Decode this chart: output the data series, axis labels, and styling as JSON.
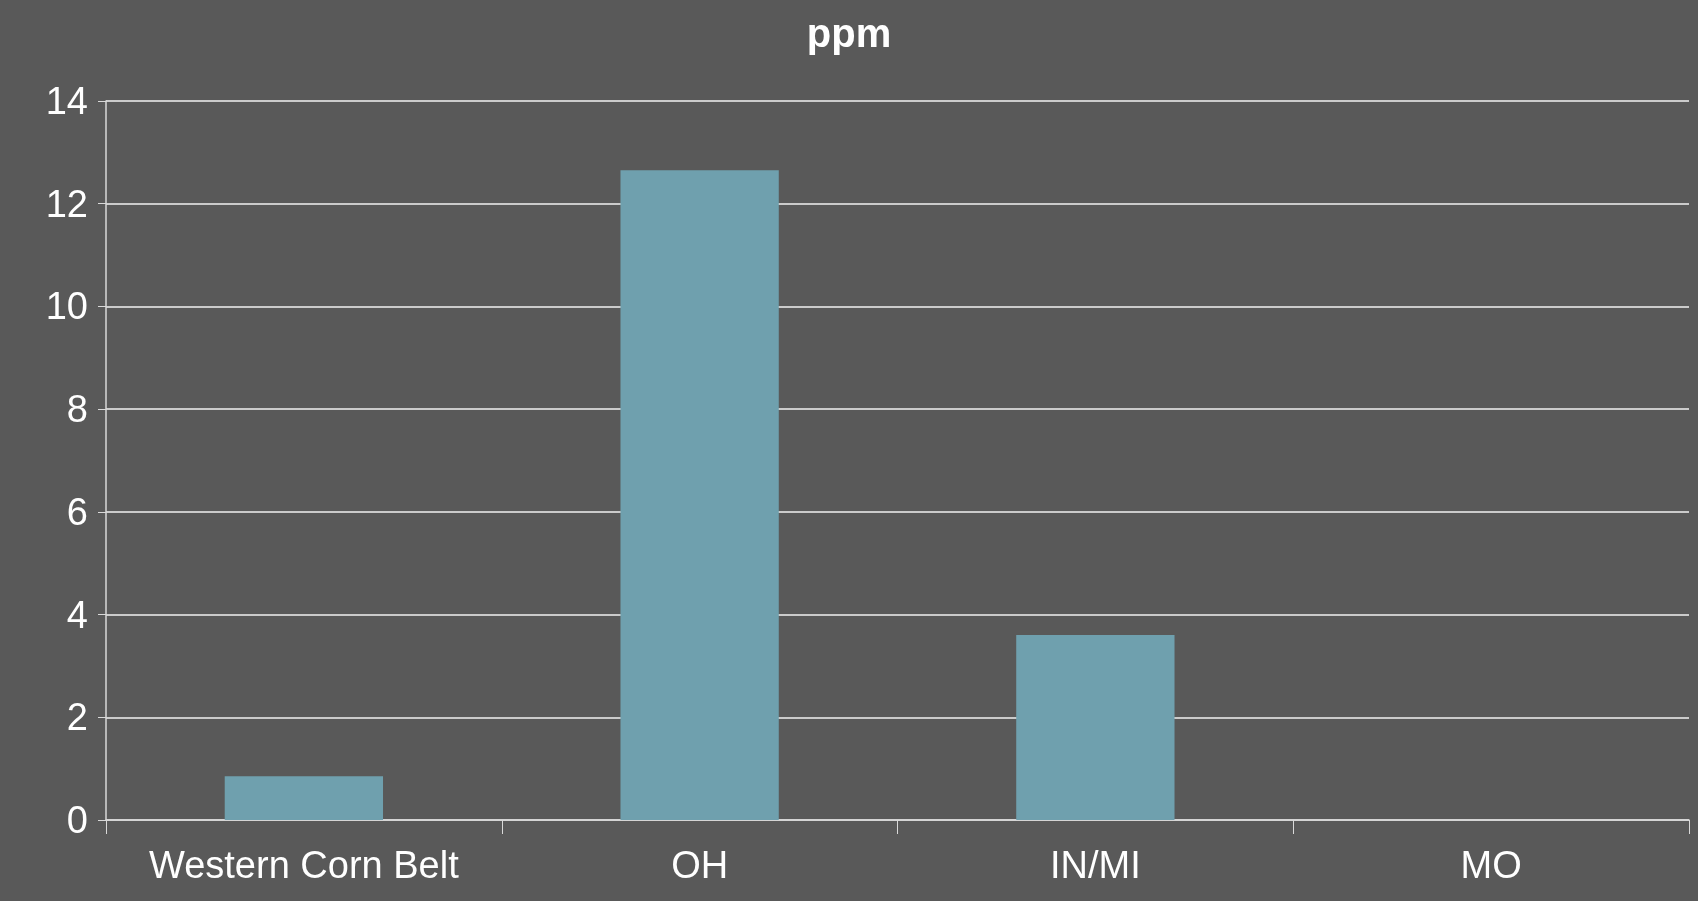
{
  "chart_data": {
    "type": "bar",
    "title": "ppm",
    "categories": [
      "Western Corn Belt",
      "OH",
      "IN/MI",
      "MO"
    ],
    "values": [
      0.85,
      12.65,
      3.6,
      0
    ],
    "color": "#6fa0ae",
    "ylim": [
      0,
      14
    ],
    "yticks": [
      0,
      2,
      4,
      6,
      8,
      10,
      12,
      14
    ],
    "grid": "y"
  }
}
